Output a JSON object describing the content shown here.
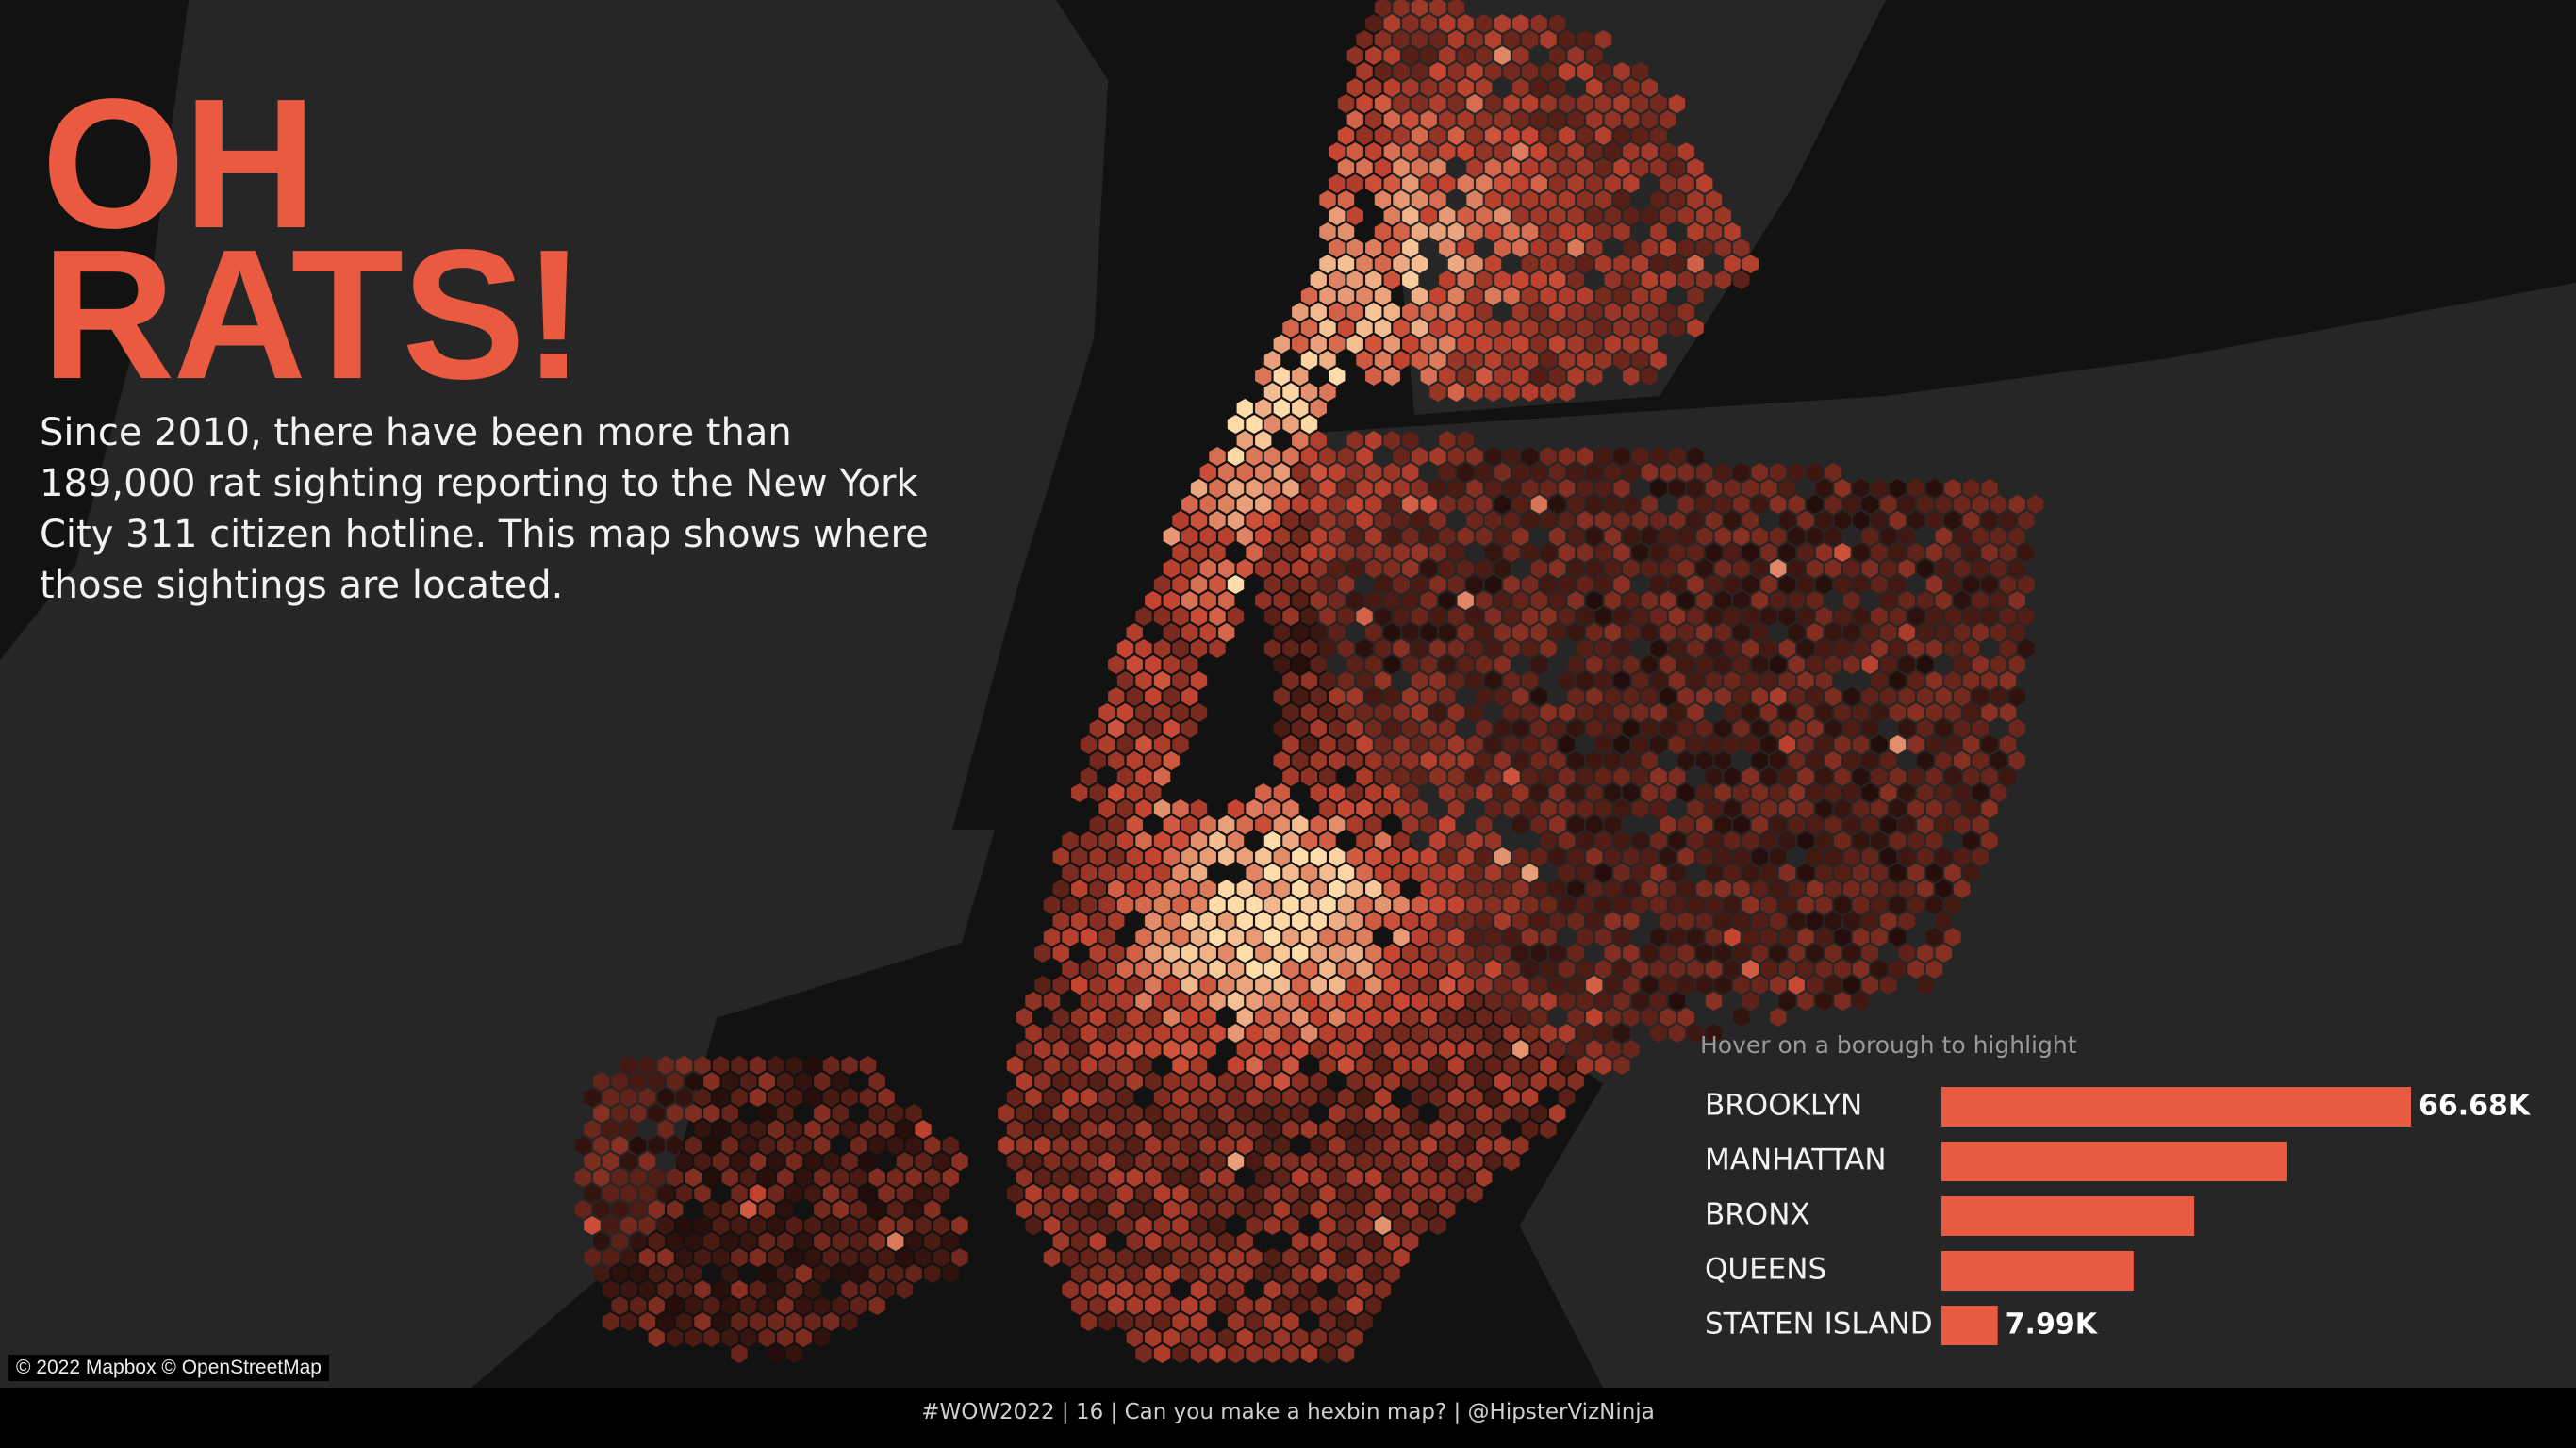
{
  "title_lines": [
    "OH",
    "RATS!"
  ],
  "description": "Since 2010, there have been more than 189,000 rat sighting reporting to the New York City 311 citizen hotline. This map shows where those sightings are located.",
  "attribution": "© 2022 Mapbox © OpenStreetMap",
  "footer": "#WOW2022 | 16 | Can you make a hexbin map? | @HipsterVizNinja",
  "chart_data": {
    "type": "bar",
    "orientation": "horizontal",
    "subtitle": "Hover on a borough to highlight",
    "categories": [
      "BROOKLYN",
      "MANHATTAN",
      "BRONX",
      "QUEENS",
      "STATEN ISLAND"
    ],
    "values": [
      66680,
      49000,
      35900,
      27300,
      7990
    ],
    "value_labels": [
      "66.68K",
      null,
      null,
      null,
      "7.99K"
    ],
    "color": "#e85a42"
  }
}
